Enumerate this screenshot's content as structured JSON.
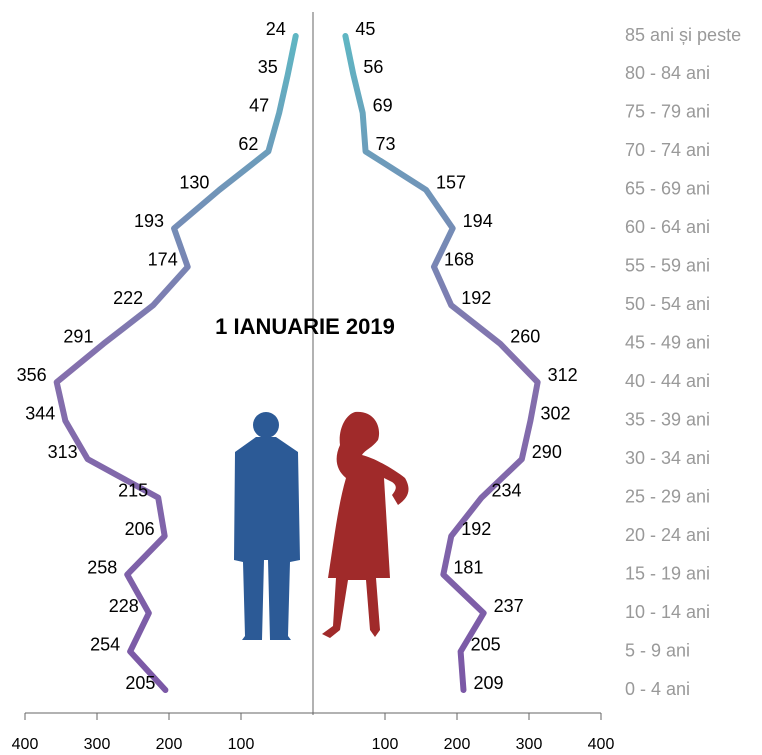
{
  "chart_data": {
    "type": "pyramid-line",
    "title": "1 IANUARIE 2019",
    "categories": [
      "0 - 4 ani",
      "5 - 9 ani",
      "10 - 14 ani",
      "15 - 19 ani",
      "20 - 24 ani",
      "25 - 29 ani",
      "30 - 34 ani",
      "35 - 39 ani",
      "40 - 44 ani",
      "45 - 49 ani",
      "50 - 54 ani",
      "55 - 59 ani",
      "60 - 64 ani",
      "65 - 69 ani",
      "70 - 74 ani",
      "75 - 79 ani",
      "80 - 84 ani",
      "85 ani și peste"
    ],
    "series": [
      {
        "color": "#7b58a6",
        "side": "left",
        "values": [
          205,
          254,
          228,
          258,
          206,
          215,
          313,
          344,
          356,
          291,
          222,
          174,
          193,
          130,
          62,
          47,
          35,
          24
        ]
      },
      {
        "color": "#7b58a6",
        "side": "right",
        "values": [
          209,
          205,
          237,
          181,
          192,
          234,
          290,
          302,
          312,
          260,
          192,
          168,
          194,
          157,
          73,
          69,
          56,
          45
        ]
      }
    ],
    "xlim": [
      0,
      400
    ],
    "xticks": [
      100,
      200,
      300,
      400
    ]
  }
}
